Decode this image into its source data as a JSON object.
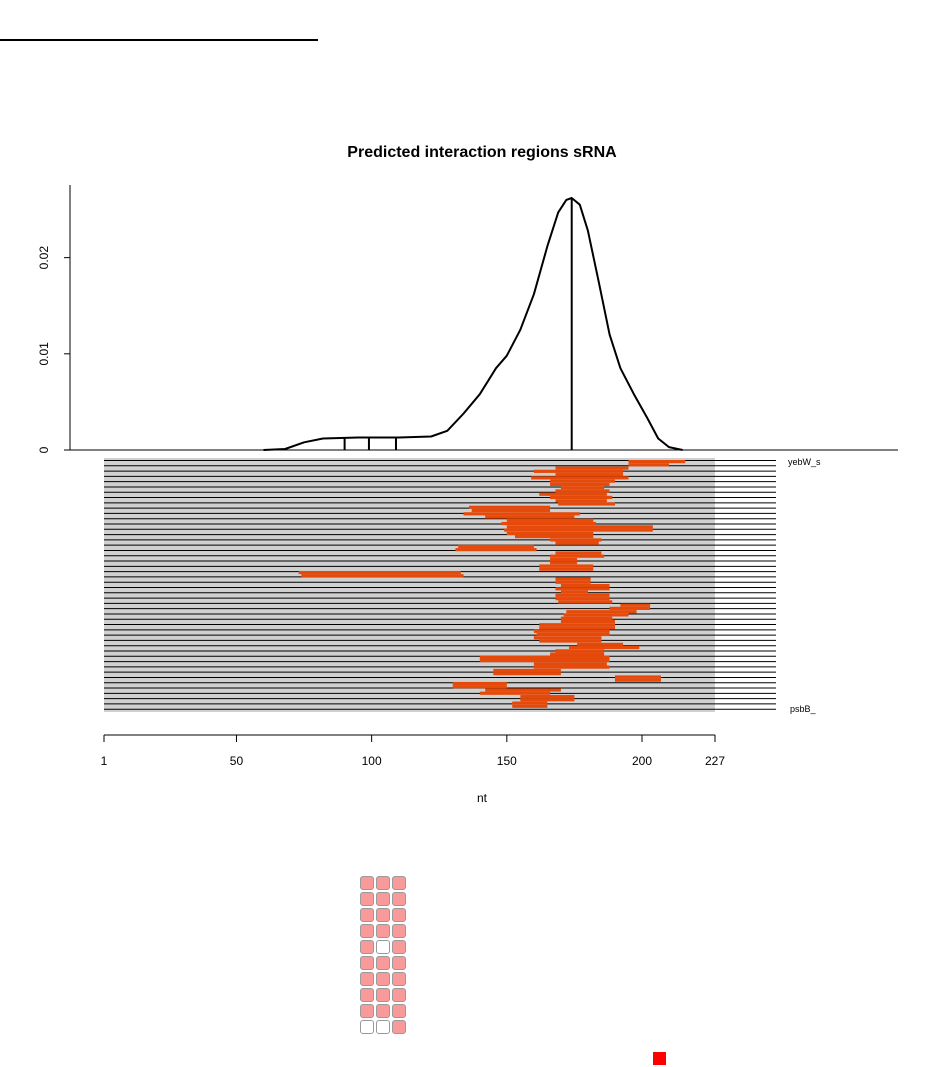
{
  "chart_data": {
    "type": "area",
    "title": "Predicted interaction regions sRNA",
    "xlabel": "nt",
    "ylabel": "",
    "xlim": [
      1,
      227
    ],
    "ylim": [
      0,
      0.026
    ],
    "x_ticks": [
      1,
      50,
      100,
      150,
      200,
      227
    ],
    "y_ticks": [
      0,
      0.01,
      0.02
    ],
    "y_tick_labels": [
      "0",
      "0.01",
      "0.02"
    ],
    "density_peak_x": 174,
    "density_peak_y": 0.0262,
    "density_curve": [
      {
        "x": 60,
        "y": 0
      },
      {
        "x": 68,
        "y": 0.0001
      },
      {
        "x": 75,
        "y": 0.0008
      },
      {
        "x": 82,
        "y": 0.0012
      },
      {
        "x": 95,
        "y": 0.0013
      },
      {
        "x": 110,
        "y": 0.0013
      },
      {
        "x": 122,
        "y": 0.0014
      },
      {
        "x": 128,
        "y": 0.002
      },
      {
        "x": 134,
        "y": 0.0038
      },
      {
        "x": 140,
        "y": 0.0058
      },
      {
        "x": 146,
        "y": 0.0085
      },
      {
        "x": 150,
        "y": 0.0098
      },
      {
        "x": 155,
        "y": 0.0125
      },
      {
        "x": 160,
        "y": 0.0162
      },
      {
        "x": 165,
        "y": 0.0212
      },
      {
        "x": 169,
        "y": 0.0247
      },
      {
        "x": 172,
        "y": 0.026
      },
      {
        "x": 174,
        "y": 0.0262
      },
      {
        "x": 177,
        "y": 0.0255
      },
      {
        "x": 180,
        "y": 0.0228
      },
      {
        "x": 184,
        "y": 0.0175
      },
      {
        "x": 188,
        "y": 0.012
      },
      {
        "x": 192,
        "y": 0.0085
      },
      {
        "x": 197,
        "y": 0.0058
      },
      {
        "x": 202,
        "y": 0.0033
      },
      {
        "x": 206,
        "y": 0.0012
      },
      {
        "x": 210,
        "y": 0.0003
      },
      {
        "x": 215,
        "y": 0
      }
    ],
    "vertical_marks_x": [
      90,
      99,
      109,
      174
    ],
    "tracks_visible": 48,
    "track_label_first": "yebW_s",
    "track_label_last": "psbB_",
    "interaction_segments": [
      [
        [
          195,
          216
        ],
        [
          195,
          210
        ]
      ],
      [
        [
          168,
          195
        ],
        [
          160,
          193
        ]
      ],
      [
        [
          168,
          193
        ],
        [
          159,
          195
        ]
      ],
      [
        [
          166,
          190
        ],
        [
          166,
          188
        ]
      ],
      [
        [
          170,
          186
        ],
        [
          168,
          188
        ]
      ],
      [
        [
          162,
          187
        ],
        [
          166,
          189
        ]
      ],
      [
        [
          168,
          187
        ],
        [
          169,
          190
        ]
      ],
      [
        [
          136,
          166
        ],
        [
          137,
          166
        ]
      ],
      [
        [
          134,
          177
        ],
        [
          142,
          175
        ]
      ],
      [
        [
          150,
          182
        ],
        [
          148,
          183
        ]
      ],
      [
        [
          150,
          204
        ],
        [
          149,
          204
        ]
      ],
      [
        [
          150,
          182
        ],
        [
          153,
          182
        ]
      ],
      [
        [
          166,
          185
        ],
        [
          168,
          184
        ]
      ],
      [
        [
          132,
          160
        ],
        [
          131,
          161
        ]
      ],
      [
        [
          168,
          185
        ],
        [
          166,
          186
        ]
      ],
      [
        [
          166,
          176
        ],
        [
          166,
          176
        ]
      ],
      [
        [
          162,
          182
        ],
        [
          162,
          182
        ]
      ],
      [
        [
          73,
          133
        ],
        [
          74,
          134
        ]
      ],
      [
        [
          168,
          181
        ],
        [
          168,
          181
        ]
      ],
      [
        [
          170,
          188
        ],
        [
          168,
          188
        ]
      ],
      [
        [
          170,
          180
        ],
        [
          168,
          188
        ]
      ],
      [
        [
          168,
          188
        ],
        [
          169,
          189
        ]
      ],
      [
        [
          192,
          203
        ],
        [
          188,
          203
        ]
      ],
      [
        [
          172,
          198
        ],
        [
          171,
          195
        ]
      ],
      [
        [
          170,
          189
        ],
        [
          170,
          190
        ]
      ],
      [
        [
          162,
          190
        ],
        [
          162,
          190
        ]
      ],
      [
        [
          160,
          188
        ],
        [
          161,
          188
        ]
      ],
      [
        [
          160,
          185
        ],
        [
          162,
          185
        ]
      ],
      [
        [
          176,
          193
        ],
        [
          173,
          199
        ]
      ],
      [
        [
          168,
          186
        ],
        [
          166,
          186
        ]
      ],
      [
        [
          140,
          188
        ],
        [
          140,
          188
        ]
      ],
      [
        [
          160,
          187
        ],
        [
          160,
          188
        ]
      ],
      [
        [
          145,
          170
        ],
        [
          145,
          170
        ]
      ],
      [
        [
          190,
          207
        ],
        [
          190,
          207
        ]
      ],
      [
        [
          130,
          150
        ],
        [
          130,
          150
        ]
      ],
      [
        [
          142,
          170
        ],
        [
          140,
          166
        ]
      ],
      [
        [
          155,
          175
        ],
        [
          155,
          175
        ]
      ],
      [
        [
          152,
          165
        ],
        [
          152,
          165
        ]
      ]
    ]
  },
  "legend_grid": {
    "rows": 10,
    "cols": 3,
    "fill_color": "#f99a9a",
    "empty_color": "#ffffff",
    "empty_cells": [
      [
        4,
        1
      ],
      [
        9,
        0
      ],
      [
        9,
        1
      ]
    ]
  },
  "colors": {
    "segment": "#e64a0a",
    "track_bg": "#d0d0d0",
    "track_line": "#000000",
    "marker": "#ff0000"
  }
}
